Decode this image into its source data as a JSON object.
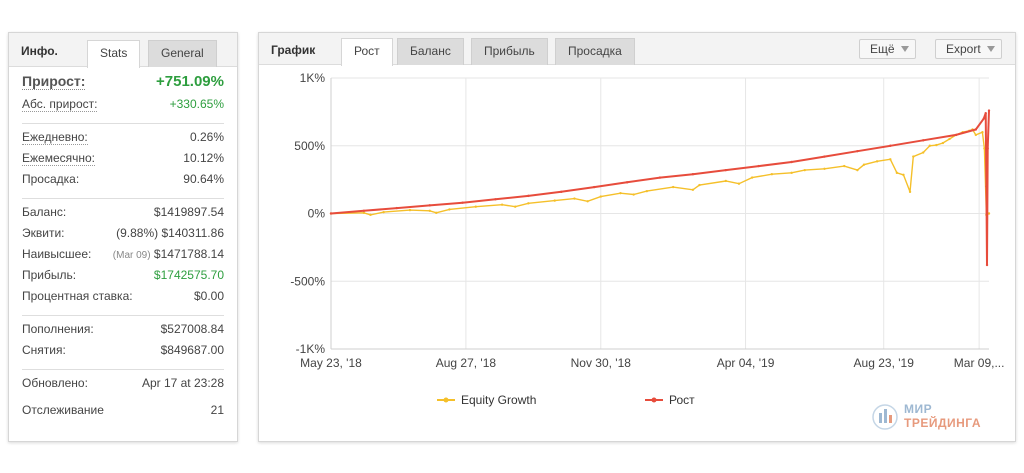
{
  "stats_panel": {
    "title": "Инфо.",
    "tabs": [
      "Stats",
      "General"
    ],
    "active_tab": "Stats",
    "gain": {
      "label": "Прирост:",
      "value": "+751.09%"
    },
    "abs_gain": {
      "label": "Абс. прирост:",
      "value": "+330.65%"
    },
    "daily": {
      "label": "Ежедневно:",
      "value": "0.26%"
    },
    "monthly": {
      "label": "Ежемесячно:",
      "value": "10.12%"
    },
    "drawdown": {
      "label": "Просадка:",
      "value": "90.64%"
    },
    "balance": {
      "label": "Баланс:",
      "value": "$1419897.54"
    },
    "equity": {
      "label": "Эквити:",
      "pct": "(9.88%)",
      "value": "$140311.86"
    },
    "highest": {
      "label": "Наивысшее:",
      "date": "(Mar 09)",
      "value": "$1471788.14"
    },
    "profit": {
      "label": "Прибыль:",
      "value": "$1742575.70"
    },
    "interest": {
      "label": "Процентная ставка:",
      "value": "$0.00"
    },
    "deposits": {
      "label": "Пополнения:",
      "value": "$527008.84"
    },
    "withdrawals": {
      "label": "Снятия:",
      "value": "$849687.00"
    },
    "updated": {
      "label": "Обновлено:",
      "value": "Apr 17 at 23:28"
    },
    "tracking": {
      "label": "Отслеживание",
      "value": "21"
    }
  },
  "chart_panel": {
    "title": "График",
    "tabs": [
      "Рост",
      "Баланс",
      "Прибыль",
      "Просадка"
    ],
    "active_tab": "Рост",
    "more_button": "Ещё",
    "export_button": "Export"
  },
  "chart_data": {
    "type": "line",
    "title": "",
    "xlabel": "",
    "ylabel": "",
    "y_ticks": [
      "1K%",
      "500%",
      "0%",
      "-500%",
      "-1K%"
    ],
    "y_tick_values": [
      1000,
      500,
      0,
      -500,
      -1000
    ],
    "ylim": [
      -1000,
      1000
    ],
    "x_ticks": [
      "May 23, '18",
      "Aug 27, '18",
      "Nov 30, '18",
      "Apr 04, '19",
      "Aug 23, '19",
      "Mar 09,..."
    ],
    "grid": true,
    "legend_position": "bottom",
    "series": [
      {
        "name": "Equity Growth",
        "color": "#f5c02a",
        "points": [
          [
            0,
            0
          ],
          [
            5,
            5
          ],
          [
            6,
            -10
          ],
          [
            8,
            10
          ],
          [
            12,
            25
          ],
          [
            15,
            20
          ],
          [
            16,
            5
          ],
          [
            18,
            30
          ],
          [
            22,
            50
          ],
          [
            26,
            65
          ],
          [
            28,
            50
          ],
          [
            30,
            75
          ],
          [
            34,
            95
          ],
          [
            37,
            110
          ],
          [
            39,
            90
          ],
          [
            41,
            125
          ],
          [
            44,
            150
          ],
          [
            46,
            140
          ],
          [
            48,
            165
          ],
          [
            52,
            195
          ],
          [
            55,
            175
          ],
          [
            56,
            210
          ],
          [
            60,
            240
          ],
          [
            62,
            220
          ],
          [
            64,
            265
          ],
          [
            67,
            290
          ],
          [
            70,
            300
          ],
          [
            72,
            320
          ],
          [
            75,
            330
          ],
          [
            78,
            350
          ],
          [
            80,
            320
          ],
          [
            81,
            360
          ],
          [
            83,
            385
          ],
          [
            85,
            400
          ],
          [
            86,
            300
          ],
          [
            87,
            285
          ],
          [
            88,
            160
          ],
          [
            88.5,
            420
          ],
          [
            90,
            450
          ],
          [
            91,
            500
          ],
          [
            92,
            505
          ],
          [
            93,
            520
          ],
          [
            94,
            550
          ],
          [
            95,
            580
          ],
          [
            96,
            600
          ],
          [
            97,
            610
          ],
          [
            97.5,
            620
          ],
          [
            98,
            580
          ],
          [
            99,
            600
          ],
          [
            99.3,
            480
          ],
          [
            99.6,
            -10
          ],
          [
            100,
            0
          ]
        ]
      },
      {
        "name": "Рост",
        "color": "#e74c3c",
        "points": [
          [
            0,
            0
          ],
          [
            5,
            20
          ],
          [
            10,
            40
          ],
          [
            15,
            60
          ],
          [
            20,
            80
          ],
          [
            25,
            105
          ],
          [
            30,
            130
          ],
          [
            35,
            160
          ],
          [
            40,
            195
          ],
          [
            45,
            230
          ],
          [
            50,
            265
          ],
          [
            55,
            290
          ],
          [
            60,
            320
          ],
          [
            65,
            350
          ],
          [
            70,
            380
          ],
          [
            75,
            420
          ],
          [
            80,
            460
          ],
          [
            85,
            500
          ],
          [
            90,
            540
          ],
          [
            95,
            580
          ],
          [
            98,
            620
          ],
          [
            99.2,
            700
          ],
          [
            99.5,
            740
          ],
          [
            99.6,
            200
          ],
          [
            99.7,
            -380
          ],
          [
            99.8,
            480
          ],
          [
            100,
            760
          ]
        ]
      }
    ]
  },
  "watermark": {
    "line1": "МИР",
    "line2": "ТРЕЙДИНГА"
  },
  "colors": {
    "green": "#2e9e3f",
    "equity_line": "#f5c02a",
    "growth_line": "#e74c3c"
  }
}
